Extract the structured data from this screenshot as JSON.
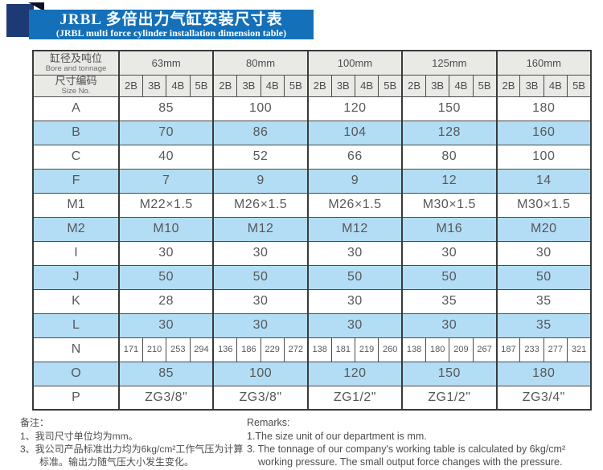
{
  "title": {
    "line1": "JRBL 多倍出力气缸安装尺寸表",
    "line2": "(JRBL multi force cylinder installation dimension table)"
  },
  "table": {
    "corner": {
      "zh": "缸径及吨位",
      "en": "Bore and tonnage"
    },
    "size_no": {
      "zh": "尺寸编码",
      "en": "Size No."
    },
    "groups": [
      "63mm",
      "80mm",
      "100mm",
      "125mm",
      "160mm"
    ],
    "sub_columns": [
      "2B",
      "3B",
      "4B",
      "5B"
    ],
    "rows": [
      {
        "label": "A",
        "type": "span",
        "shade": false,
        "values": [
          "85",
          "100",
          "120",
          "150",
          "180"
        ]
      },
      {
        "label": "B",
        "type": "span",
        "shade": true,
        "values": [
          "70",
          "86",
          "104",
          "128",
          "160"
        ]
      },
      {
        "label": "C",
        "type": "span",
        "shade": false,
        "values": [
          "40",
          "52",
          "66",
          "80",
          "100"
        ]
      },
      {
        "label": "F",
        "type": "span",
        "shade": true,
        "values": [
          "7",
          "9",
          "9",
          "12",
          "14"
        ]
      },
      {
        "label": "M1",
        "type": "span",
        "shade": false,
        "values": [
          "M22×1.5",
          "M26×1.5",
          "M26×1.5",
          "M30×1.5",
          "M30×1.5"
        ]
      },
      {
        "label": "M2",
        "type": "span",
        "shade": true,
        "values": [
          "M10",
          "M12",
          "M12",
          "M16",
          "M20"
        ]
      },
      {
        "label": "I",
        "type": "span",
        "shade": false,
        "values": [
          "30",
          "30",
          "30",
          "30",
          "30"
        ]
      },
      {
        "label": "J",
        "type": "span",
        "shade": true,
        "values": [
          "50",
          "50",
          "50",
          "50",
          "50"
        ]
      },
      {
        "label": "K",
        "type": "span",
        "shade": false,
        "values": [
          "28",
          "30",
          "30",
          "35",
          "35"
        ]
      },
      {
        "label": "L",
        "type": "span",
        "shade": true,
        "values": [
          "30",
          "30",
          "30",
          "30",
          "35"
        ]
      },
      {
        "label": "N",
        "type": "cells",
        "shade": false,
        "values": [
          [
            "171",
            "210",
            "253",
            "294"
          ],
          [
            "136",
            "186",
            "229",
            "272"
          ],
          [
            "138",
            "181",
            "219",
            "260"
          ],
          [
            "138",
            "180",
            "209",
            "267"
          ],
          [
            "187",
            "233",
            "277",
            "321"
          ]
        ]
      },
      {
        "label": "O",
        "type": "span",
        "shade": true,
        "values": [
          "85",
          "100",
          "120",
          "150",
          "180"
        ]
      },
      {
        "label": "P",
        "type": "span",
        "shade": false,
        "values": [
          "ZG3/8\"",
          "ZG3/8\"",
          "ZG1/2\"",
          "ZG1/2\"",
          "ZG3/4\""
        ]
      }
    ]
  },
  "notes_zh": {
    "title": "备注：",
    "items": [
      "1、我司尺寸单位均为mm。",
      "3、我公司产品标准出力均为6kg/cm²工作气压为计算标准。输出力随气压大小发生变化。"
    ]
  },
  "notes_en": {
    "title": "Remarks:",
    "items": [
      "1.The size unit of our department is mm.",
      "3. The tonnage of our company's working table is calculated by 6kg/cm² working pressure. The small output force changes with the pressure."
    ]
  },
  "colors": {
    "banner_blue": "#1470b8",
    "navy_square": "#1e3a75",
    "fold_black": "#0d1026",
    "header_gray": "#e9e9e6",
    "row_blue": "#b2ddf4",
    "border": "#4a4a4a",
    "text": "#57585a"
  }
}
